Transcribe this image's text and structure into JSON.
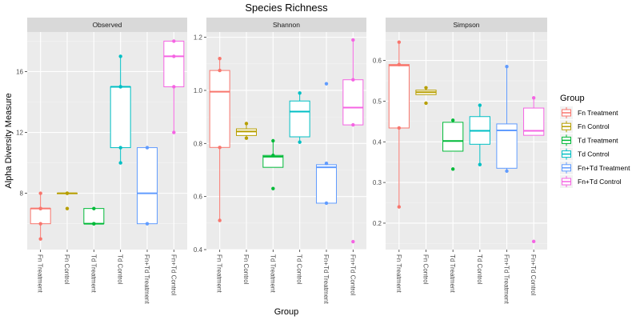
{
  "chart_data": {
    "type": "box",
    "title": "Species Richness",
    "xlabel": "Group",
    "ylabel": "Alpha Diversity Measure",
    "categories": [
      "Fn Treatment",
      "Fn Control",
      "Td Treatment",
      "Td Control",
      "Fn+Td Treatment",
      "Fn+Td Control"
    ],
    "colors": [
      "#F8766D",
      "#B79F00",
      "#00BA38",
      "#00BFC4",
      "#619CFF",
      "#F564E3"
    ],
    "legend": {
      "title": "Group",
      "position": "right"
    },
    "grid": true,
    "facets": [
      {
        "name": "Observed",
        "ylim": [
          4.3,
          18.6
        ],
        "yticks": [
          8,
          12,
          16
        ],
        "boxes": [
          {
            "category": "Fn Treatment",
            "q1": 6,
            "median": 7,
            "q3": 7,
            "whisker_low": 5,
            "whisker_high": 8,
            "points": [
              5,
              6,
              7,
              7,
              8
            ]
          },
          {
            "category": "Fn Control",
            "q1": 8,
            "median": 8,
            "q3": 8,
            "whisker_low": 8,
            "whisker_high": 8,
            "points": [
              7,
              8,
              8
            ]
          },
          {
            "category": "Td Treatment",
            "q1": 6,
            "median": 6,
            "q3": 7,
            "whisker_low": 6,
            "whisker_high": 7,
            "points": [
              6,
              6,
              7
            ]
          },
          {
            "category": "Td Control",
            "q1": 11,
            "median": 15,
            "q3": 15,
            "whisker_low": 10,
            "whisker_high": 17,
            "points": [
              10,
              11,
              15,
              15,
              17
            ]
          },
          {
            "category": "Fn+Td Treatment",
            "q1": 6,
            "median": 8,
            "q3": 11,
            "whisker_low": 6,
            "whisker_high": 11,
            "points": [
              6,
              11
            ]
          },
          {
            "category": "Fn+Td Control",
            "q1": 15,
            "median": 17,
            "q3": 18,
            "whisker_low": 12,
            "whisker_high": 18,
            "points": [
              12,
              15,
              17,
              18
            ]
          }
        ]
      },
      {
        "name": "Shannon",
        "ylim": [
          0.4,
          1.22
        ],
        "yticks": [
          0.4,
          0.6,
          0.8,
          1.0,
          1.2
        ],
        "boxes": [
          {
            "category": "Fn Treatment",
            "q1": 0.785,
            "median": 0.995,
            "q3": 1.075,
            "whisker_low": 0.51,
            "whisker_high": 1.12,
            "points": [
              0.51,
              0.785,
              1.075,
              1.12
            ]
          },
          {
            "category": "Fn Control",
            "q1": 0.83,
            "median": 0.845,
            "q3": 0.855,
            "whisker_low": 0.82,
            "whisker_high": 0.875,
            "points": [
              0.82,
              0.875
            ]
          },
          {
            "category": "Td Treatment",
            "q1": 0.71,
            "median": 0.75,
            "q3": 0.755,
            "whisker_low": 0.71,
            "whisker_high": 0.81,
            "points": [
              0.63,
              0.755,
              0.81
            ]
          },
          {
            "category": "Td Control",
            "q1": 0.825,
            "median": 0.92,
            "q3": 0.96,
            "whisker_low": 0.805,
            "whisker_high": 0.99,
            "points": [
              0.805,
              0.99
            ]
          },
          {
            "category": "Fn+Td Treatment",
            "q1": 0.575,
            "median": 0.71,
            "q3": 0.72,
            "whisker_low": 0.575,
            "whisker_high": 0.725,
            "points": [
              0.575,
              0.725,
              1.025
            ]
          },
          {
            "category": "Fn+Td Control",
            "q1": 0.87,
            "median": 0.935,
            "q3": 1.04,
            "whisker_low": 0.87,
            "whisker_high": 1.19,
            "points": [
              0.43,
              0.87,
              1.04,
              1.19
            ]
          }
        ]
      },
      {
        "name": "Simpson",
        "ylim": [
          0.135,
          0.67
        ],
        "yticks": [
          0.2,
          0.3,
          0.4,
          0.5,
          0.6
        ],
        "boxes": [
          {
            "category": "Fn Treatment",
            "q1": 0.434,
            "median": 0.588,
            "q3": 0.59,
            "whisker_low": 0.24,
            "whisker_high": 0.645,
            "points": [
              0.24,
              0.434,
              0.59,
              0.645
            ]
          },
          {
            "category": "Fn Control",
            "q1": 0.516,
            "median": 0.522,
            "q3": 0.527,
            "whisker_low": 0.516,
            "whisker_high": 0.533,
            "points": [
              0.495,
              0.533
            ]
          },
          {
            "category": "Td Treatment",
            "q1": 0.377,
            "median": 0.402,
            "q3": 0.448,
            "whisker_low": 0.377,
            "whisker_high": 0.453,
            "points": [
              0.333,
              0.453
            ]
          },
          {
            "category": "Td Control",
            "q1": 0.394,
            "median": 0.427,
            "q3": 0.462,
            "whisker_low": 0.344,
            "whisker_high": 0.49,
            "points": [
              0.344,
              0.49
            ]
          },
          {
            "category": "Fn+Td Treatment",
            "q1": 0.335,
            "median": 0.428,
            "q3": 0.444,
            "whisker_low": 0.328,
            "whisker_high": 0.585,
            "points": [
              0.328,
              0.585
            ]
          },
          {
            "category": "Fn+Td Control",
            "q1": 0.416,
            "median": 0.427,
            "q3": 0.483,
            "whisker_low": 0.416,
            "whisker_high": 0.508,
            "points": [
              0.155,
              0.508
            ]
          }
        ]
      }
    ]
  }
}
